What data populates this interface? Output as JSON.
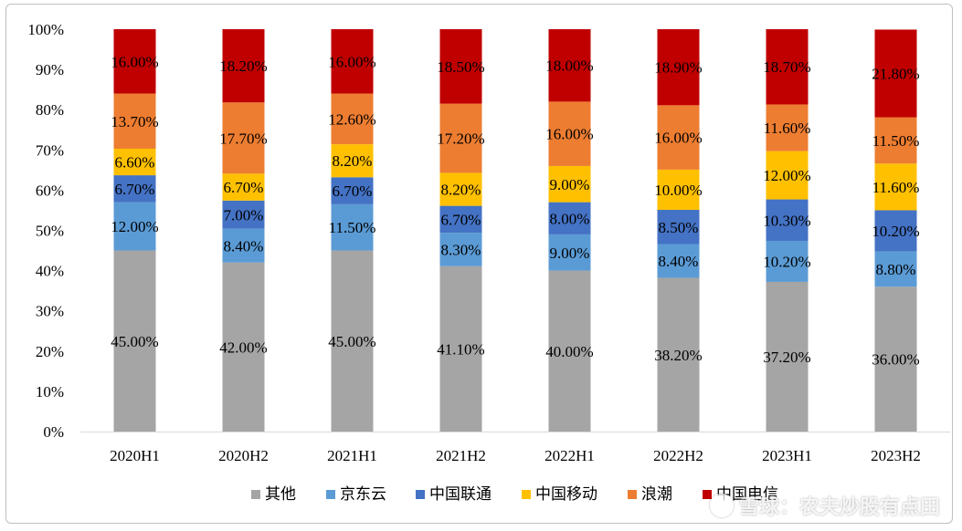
{
  "chart_data": {
    "type": "bar",
    "stacked": true,
    "title": "",
    "xlabel": "",
    "ylabel": "",
    "ylim": [
      0,
      100
    ],
    "y_ticks": [
      "0%",
      "10%",
      "20%",
      "30%",
      "40%",
      "50%",
      "60%",
      "70%",
      "80%",
      "90%",
      "100%"
    ],
    "categories": [
      "2020H1",
      "2020H2",
      "2021H1",
      "2021H2",
      "2022H1",
      "2022H2",
      "2023H1",
      "2023H2"
    ],
    "series": [
      {
        "name": "其他",
        "color": "#a5a5a5",
        "values": [
          45.0,
          42.0,
          45.0,
          41.1,
          40.0,
          38.2,
          37.2,
          36.0
        ],
        "labels": [
          "45.00%",
          "42.00%",
          "45.00%",
          "41.10%",
          "40.00%",
          "38.20%",
          "37.20%",
          "36.00%"
        ]
      },
      {
        "name": "京东云",
        "color": "#5b9bd5",
        "values": [
          12.0,
          8.4,
          11.5,
          8.3,
          9.0,
          8.4,
          10.2,
          8.8
        ],
        "labels": [
          "12.00%",
          "8.40%",
          "11.50%",
          "8.30%",
          "9.00%",
          "8.40%",
          "10.20%",
          "8.80%"
        ]
      },
      {
        "name": "中国联通",
        "color": "#4472c4",
        "values": [
          6.7,
          7.0,
          6.7,
          6.7,
          8.0,
          8.5,
          10.3,
          10.2
        ],
        "labels": [
          "6.70%",
          "7.00%",
          "6.70%",
          "6.70%",
          "8.00%",
          "8.50%",
          "10.30%",
          "10.20%"
        ]
      },
      {
        "name": "中国移动",
        "color": "#ffc000",
        "values": [
          6.6,
          6.7,
          8.2,
          8.2,
          9.0,
          10.0,
          12.0,
          11.6
        ],
        "labels": [
          "6.60%",
          "6.70%",
          "8.20%",
          "8.20%",
          "9.00%",
          "10.00%",
          "12.00%",
          "11.60%"
        ]
      },
      {
        "name": "浪潮",
        "color": "#ed7d31",
        "values": [
          13.7,
          17.7,
          12.6,
          17.2,
          16.0,
          16.0,
          11.6,
          11.5
        ],
        "labels": [
          "13.70%",
          "17.70%",
          "12.60%",
          "17.20%",
          "16.00%",
          "16.00%",
          "11.60%",
          "11.50%"
        ]
      },
      {
        "name": "中国电信",
        "color": "#c00000",
        "values": [
          16.0,
          18.2,
          16.0,
          18.5,
          18.0,
          18.9,
          18.7,
          21.8
        ],
        "labels": [
          "16.00%",
          "18.20%",
          "16.00%",
          "18.50%",
          "18.00%",
          "18.90%",
          "18.70%",
          "21.80%"
        ]
      }
    ],
    "legend_position": "bottom",
    "grid": false
  },
  "watermark": "雪球：农夫炒股有点田"
}
